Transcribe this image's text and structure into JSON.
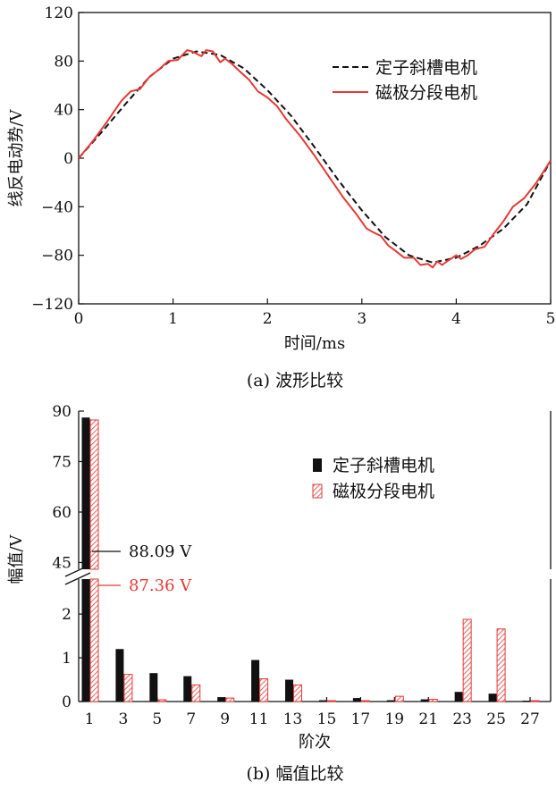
{
  "colors": {
    "stator": "#111111",
    "pole": "#e53935"
  },
  "chart_data": [
    {
      "type": "line",
      "caption": "(a) 波形比较",
      "xlabel": "时间/ms",
      "ylabel": "线反电动势/V",
      "xlim": [
        0,
        5
      ],
      "ylim": [
        -120,
        120
      ],
      "xticks": [
        "0",
        "1",
        "2",
        "3",
        "4",
        "5"
      ],
      "yticks": [
        "120",
        "80",
        "40",
        "0",
        "−40",
        "−80",
        "−120"
      ],
      "series": [
        {
          "name": "定子斜槽电机",
          "style": "dashed",
          "color": "#111111",
          "x": [
            0,
            0.25,
            0.5,
            0.75,
            1.0,
            1.25,
            1.5,
            1.75,
            2.0,
            2.25,
            2.5,
            2.75,
            3.0,
            3.25,
            3.5,
            3.75,
            4.0,
            4.25,
            4.5,
            4.75,
            5.0
          ],
          "y": [
            0,
            22,
            45,
            67,
            82,
            88,
            85,
            74,
            56,
            35,
            9,
            -18,
            -43,
            -65,
            -80,
            -86,
            -82,
            -72,
            -58,
            -38,
            -2
          ]
        },
        {
          "name": "磁极分段电机",
          "style": "solid",
          "color": "#e53935",
          "x": [
            0,
            0.15,
            0.3,
            0.45,
            0.55,
            0.65,
            0.75,
            0.85,
            0.95,
            1.05,
            1.15,
            1.2,
            1.3,
            1.35,
            1.42,
            1.5,
            1.55,
            1.62,
            1.7,
            1.8,
            1.9,
            2.0,
            2.1,
            2.2,
            2.35,
            2.5,
            2.65,
            2.8,
            2.95,
            3.05,
            3.12,
            3.2,
            3.28,
            3.35,
            3.45,
            3.55,
            3.62,
            3.7,
            3.75,
            3.8,
            3.85,
            3.92,
            4.0,
            4.05,
            4.12,
            4.2,
            4.3,
            4.4,
            4.5,
            4.6,
            4.72,
            4.85,
            5.0
          ],
          "y": [
            0,
            14,
            30,
            47,
            55,
            57,
            67,
            73,
            80,
            81,
            89,
            88,
            84,
            89,
            88,
            79,
            82,
            78,
            72,
            65,
            55,
            50,
            43,
            32,
            18,
            2,
            -15,
            -32,
            -47,
            -58,
            -61,
            -64,
            -72,
            -76,
            -82,
            -82,
            -88,
            -87,
            -90,
            -85,
            -88,
            -84,
            -80,
            -83,
            -80,
            -75,
            -73,
            -62,
            -52,
            -40,
            -33,
            -20,
            -2
          ]
        }
      ]
    },
    {
      "type": "bar",
      "caption": "(b) 幅值比较",
      "xlabel": "阶次",
      "ylabel": "幅值/V",
      "axis_break": true,
      "ylim_lower": [
        0,
        2.8
      ],
      "ylim_upper": [
        43,
        90
      ],
      "yticks_lower": [
        "0",
        "1",
        "2"
      ],
      "yticks_upper": [
        "45",
        "60",
        "75",
        "90"
      ],
      "categories": [
        "1",
        "3",
        "5",
        "7",
        "9",
        "11",
        "13",
        "15",
        "17",
        "19",
        "21",
        "23",
        "25",
        "27"
      ],
      "series": [
        {
          "name": "定子斜槽电机",
          "pattern": "solid",
          "values": [
            88.09,
            1.2,
            0.65,
            0.58,
            0.1,
            0.95,
            0.5,
            0.03,
            0.08,
            0.03,
            0.05,
            0.22,
            0.18,
            0.02
          ]
        },
        {
          "name": "磁极分段电机",
          "pattern": "hatched",
          "values": [
            87.36,
            0.62,
            0.04,
            0.38,
            0.08,
            0.52,
            0.38,
            0.02,
            0.02,
            0.12,
            0.05,
            1.88,
            1.66,
            0.02
          ]
        }
      ],
      "annotations": [
        "88.09 V",
        "87.36 V"
      ]
    }
  ]
}
